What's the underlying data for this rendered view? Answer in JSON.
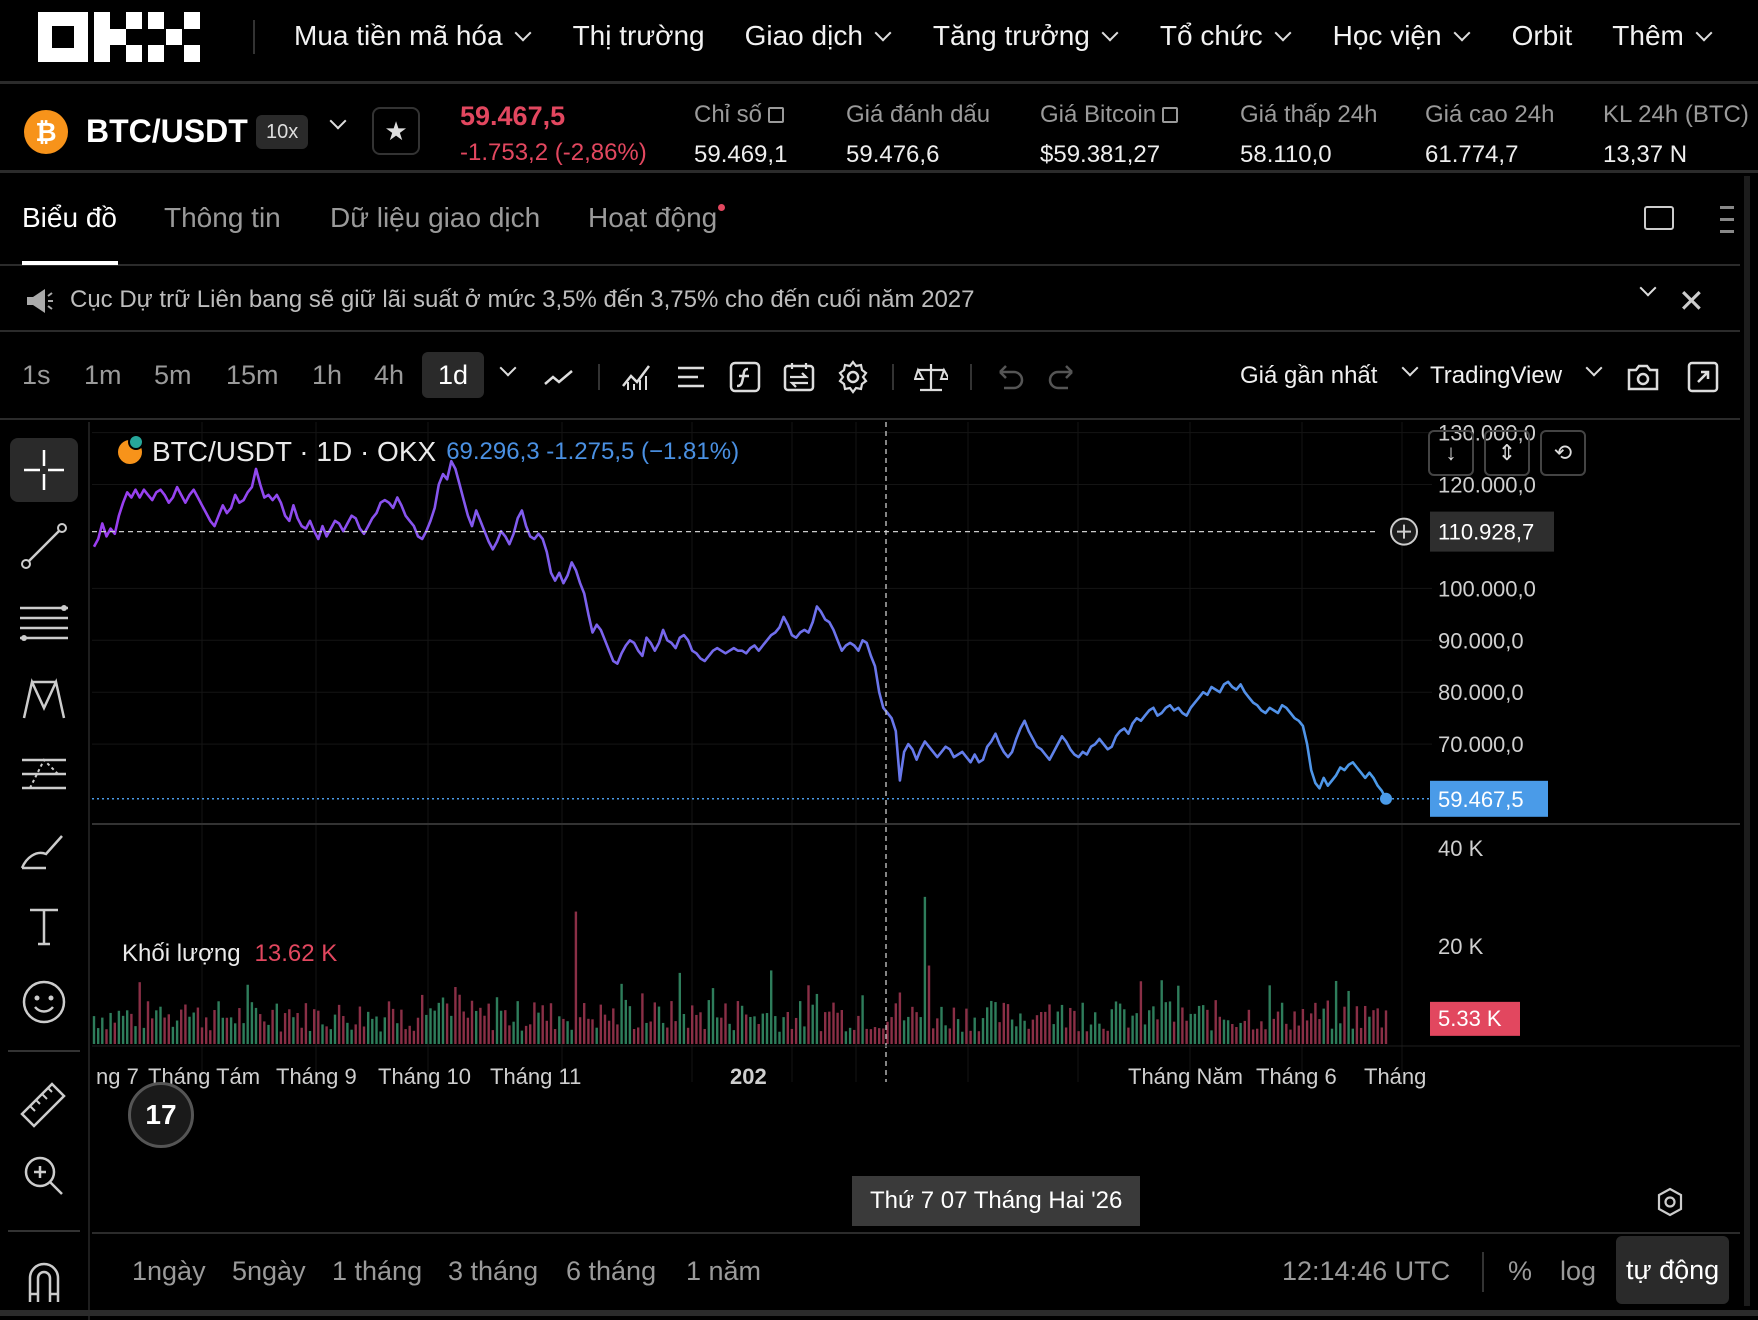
{
  "nav": {
    "items": [
      {
        "label": "Mua tiền mã hóa",
        "dropdown": true
      },
      {
        "label": "Thị trường",
        "dropdown": false
      },
      {
        "label": "Giao dịch",
        "dropdown": true
      },
      {
        "label": "Tăng trưởng",
        "dropdown": true
      },
      {
        "label": "Tổ chức",
        "dropdown": true
      },
      {
        "label": "Học viện",
        "dropdown": true
      },
      {
        "label": "Orbit",
        "dropdown": false
      },
      {
        "label": "Thêm",
        "dropdown": true
      }
    ]
  },
  "ticker": {
    "coin_glyph": "₿",
    "pair": "BTC/USDT",
    "leverage": "10x",
    "last_price": "59.467,5",
    "change": "-1.753,2 (-2,86%)",
    "stats": [
      {
        "label": "Chỉ số",
        "value": "59.469,1",
        "external": true
      },
      {
        "label": "Giá đánh dấu",
        "value": "59.476,6",
        "external": false
      },
      {
        "label": "Giá Bitcoin",
        "value": "$59.381,27",
        "external": true
      },
      {
        "label": "Giá thấp 24h",
        "value": "58.110,0",
        "external": false
      },
      {
        "label": "Giá cao 24h",
        "value": "61.774,7",
        "external": false
      },
      {
        "label": "KL 24h (BTC)",
        "value": "13,37 N",
        "external": false
      }
    ]
  },
  "tabs": [
    {
      "label": "Biểu đồ",
      "active": true
    },
    {
      "label": "Thông tin",
      "active": false
    },
    {
      "label": "Dữ liệu giao dịch",
      "active": false
    },
    {
      "label": "Hoạt động",
      "active": false,
      "dot": true
    }
  ],
  "announcement": "Cục Dự trữ Liên bang sẽ giữ lãi suất ở mức 3,5% đến 3,75% cho đến cuối năm 2027",
  "toolbar": {
    "timeframes": [
      "1s",
      "1m",
      "5m",
      "15m",
      "1h",
      "4h",
      "1d"
    ],
    "active_timeframe": "1d",
    "price_type": "Giá gần nhất",
    "chart_engine": "TradingView"
  },
  "legend": {
    "symbol": "BTC/USDT · 1D · OKX",
    "values": "69.296,3  -1.275,5 (−1.81%)",
    "volume_label": "Khối lượng",
    "volume_value": "13.62 K"
  },
  "date_tooltip": "Thứ 7 07 Tháng Hai '26",
  "tv_logo": "17",
  "bottom": {
    "ranges": [
      "1ngày",
      "5ngày",
      "1 tháng",
      "3 tháng",
      "6 tháng",
      "1 năm"
    ],
    "clock": "12:14:46 UTC",
    "options": [
      "%",
      "log",
      "tự động"
    ],
    "active_option": "tự động"
  },
  "colors": {
    "down": "#e2475f",
    "line_start": "#9b3df0",
    "line_end": "#4a9be8",
    "price_tag": "#4a9be8",
    "vol_up": "#2e7d5b",
    "vol_down": "#8a2f46"
  },
  "chart_data": {
    "type": "line",
    "price_axis": {
      "ticks": [
        "130.000,0",
        "120.000,0",
        "100.000,0",
        "90.000,0",
        "80.000,0",
        "70.000,0"
      ],
      "tick_values": [
        130000,
        120000,
        100000,
        90000,
        80000,
        70000
      ],
      "range": [
        55000,
        130500
      ],
      "crosshair_value": 110928.7,
      "crosshair_label": "110.928,7",
      "last_value": 59467.5,
      "last_label": "59.467,5"
    },
    "volume_axis": {
      "ticks": [
        "40 K",
        "20 K"
      ],
      "tick_values": [
        40000,
        20000
      ],
      "range": [
        0,
        42000
      ],
      "last_label": "5.33 K"
    },
    "x_labels": [
      "ng 7",
      "Tháng Tám",
      "Tháng 9",
      "Tháng 10",
      "Tháng 11",
      "202",
      "Tháng Năm",
      "Tháng 6",
      "Tháng"
    ],
    "series": [
      {
        "name": "BTC/USDT",
        "values": [
          108000,
          109500,
          112500,
          110000,
          111500,
          110500,
          114000,
          116500,
          118500,
          117500,
          119000,
          117500,
          119000,
          118000,
          117000,
          118500,
          119000,
          118000,
          116500,
          117500,
          119500,
          118000,
          116500,
          118000,
          119000,
          117500,
          116000,
          114500,
          113000,
          112000,
          114000,
          116000,
          114500,
          115500,
          118000,
          116500,
          117000,
          118500,
          119500,
          123000,
          120000,
          117500,
          118000,
          117000,
          118000,
          116500,
          114000,
          113000,
          116000,
          113500,
          112000,
          111500,
          113000,
          111000,
          109500,
          112000,
          110000,
          111500,
          113000,
          112500,
          111000,
          112500,
          114000,
          113500,
          111500,
          110500,
          112000,
          113500,
          114500,
          116500,
          117000,
          116500,
          115500,
          117500,
          116000,
          114000,
          113000,
          112000,
          110000,
          109500,
          111000,
          113000,
          115500,
          120000,
          122000,
          121000,
          124500,
          123000,
          120000,
          117000,
          114000,
          112000,
          115000,
          113000,
          111000,
          109000,
          107500,
          109000,
          111000,
          110000,
          108500,
          110500,
          113500,
          115000,
          112000,
          110000,
          109500,
          110500,
          109500,
          107000,
          103000,
          101500,
          103000,
          101000,
          102500,
          105000,
          103500,
          101000,
          99000,
          95000,
          91500,
          93000,
          92000,
          90000,
          88000,
          86000,
          85500,
          87500,
          89000,
          90000,
          89500,
          88000,
          87000,
          90500,
          89500,
          88000,
          89500,
          92000,
          90000,
          89500,
          88500,
          90500,
          91000,
          90000,
          88000,
          87500,
          86500,
          86000,
          87000,
          88000,
          88500,
          88000,
          87500,
          88000,
          88500,
          88000,
          88000,
          87500,
          88500,
          89000,
          88000,
          89000,
          90000,
          91000,
          91500,
          92500,
          94500,
          93000,
          91000,
          90500,
          91500,
          92000,
          91500,
          93500,
          96500,
          95500,
          94000,
          93500,
          92000,
          90000,
          88000,
          89000,
          89500,
          89000,
          88000,
          90000,
          89500,
          87000,
          85000,
          80000,
          77000,
          76000,
          75000,
          72500,
          63000,
          68500,
          70000,
          69000,
          67000,
          69000,
          70500,
          69500,
          68500,
          67500,
          68500,
          69500,
          69000,
          67500,
          68000,
          68500,
          67500,
          66500,
          68000,
          66500,
          67000,
          69500,
          70500,
          72000,
          70000,
          68500,
          67500,
          68500,
          71000,
          73000,
          74500,
          72500,
          71000,
          69500,
          69000,
          68000,
          67000,
          68500,
          70000,
          71500,
          70500,
          69000,
          68000,
          67500,
          68500,
          68000,
          69500,
          70000,
          71000,
          70000,
          69000,
          69500,
          71500,
          72500,
          73000,
          72000,
          74000,
          75000,
          74500,
          75500,
          76500,
          77000,
          75500,
          76000,
          77000,
          77500,
          76500,
          77000,
          76000,
          75500,
          77000,
          78000,
          79000,
          80000,
          79500,
          81000,
          80500,
          80000,
          81500,
          82000,
          81000,
          80500,
          81500,
          80000,
          79000,
          78000,
          77500,
          76500,
          76000,
          77000,
          76500,
          76000,
          77500,
          77000,
          76000,
          75000,
          74500,
          73500,
          70000,
          65000,
          62500,
          61500,
          63500,
          62000,
          63000,
          64000,
          65500,
          65000,
          66000,
          66500,
          65500,
          64500,
          63500,
          64500,
          63500,
          62000,
          61000,
          59467
        ]
      }
    ]
  }
}
